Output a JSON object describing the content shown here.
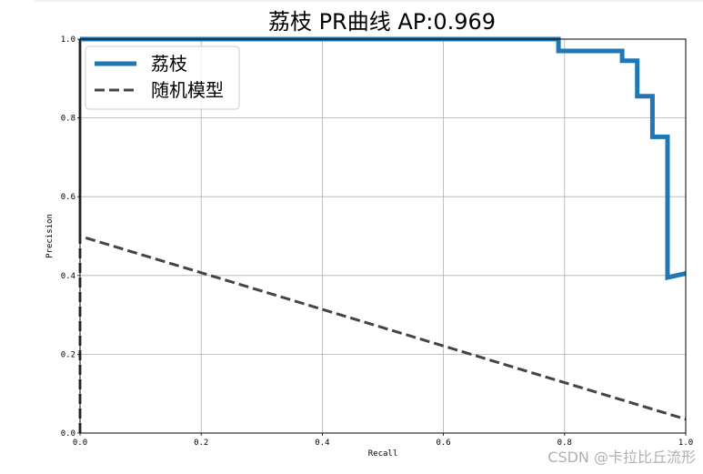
{
  "chart_data": {
    "type": "line",
    "title": "荔枝 PR曲线  AP:0.969",
    "xlabel": "Recall",
    "ylabel": "Precision",
    "xlim": [
      0,
      1
    ],
    "ylim": [
      0,
      1
    ],
    "xticks": [
      "0.0",
      "0.2",
      "0.4",
      "0.6",
      "0.8",
      "1.0"
    ],
    "yticks": [
      "0.0",
      "0.2",
      "0.4",
      "0.6",
      "0.8",
      "1.0"
    ],
    "grid": true,
    "legend_position": "top-left",
    "series": [
      {
        "name": "荔枝",
        "style": "solid",
        "color": "#1f77b4",
        "x": [
          0,
          0.79,
          0.79,
          0.895,
          0.895,
          0.92,
          0.92,
          0.945,
          0.945,
          0.97,
          0.97,
          1.0
        ],
        "y": [
          1.0,
          1.0,
          0.97,
          0.97,
          0.945,
          0.945,
          0.855,
          0.855,
          0.752,
          0.752,
          0.395,
          0.405
        ]
      },
      {
        "name": "随机模型",
        "style": "dashed",
        "color": "#444444",
        "x": [
          0.0,
          0.0,
          0.0,
          1.0
        ],
        "y": [
          0.0,
          1.0,
          0.5,
          0.035
        ]
      }
    ]
  },
  "watermark": "CSDN @卡拉比丘流形"
}
